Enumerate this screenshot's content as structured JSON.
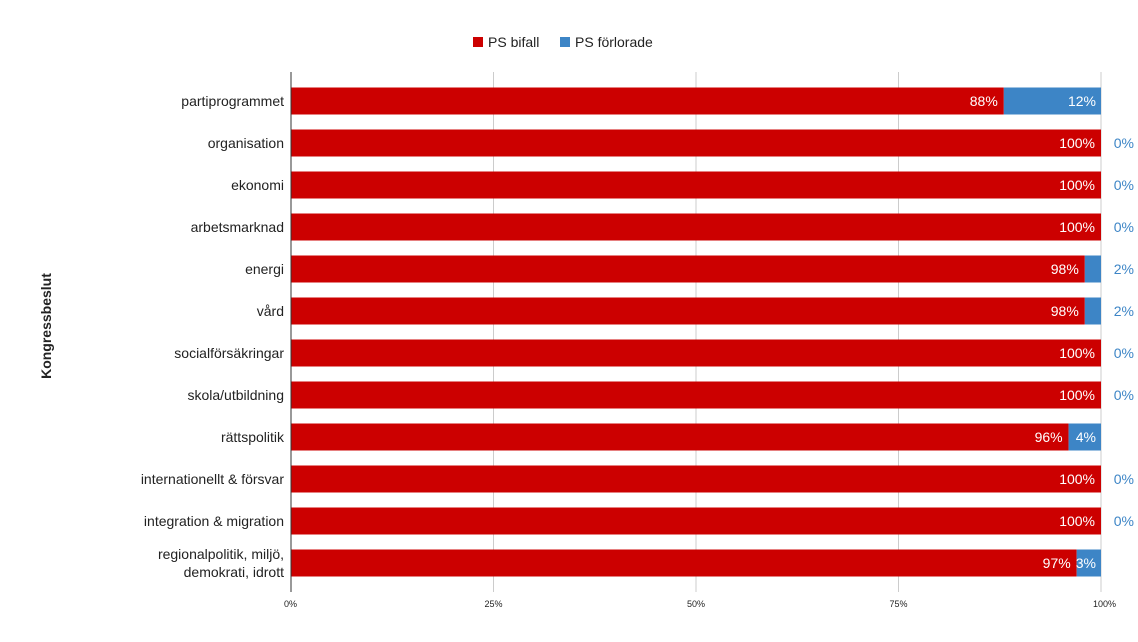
{
  "chart_data": {
    "type": "bar",
    "orientation": "horizontal",
    "stacked": true,
    "percent_stacked": true,
    "ylabel": "Kongressbeslut",
    "xlabel": "",
    "xlim": [
      0,
      100
    ],
    "x_ticks": [
      "0%",
      "25%",
      "50%",
      "75%",
      "100%"
    ],
    "grid": true,
    "legend_position": "top",
    "categories": [
      "partiprogrammet",
      "organisation",
      "ekonomi",
      "arbetsmarknad",
      "energi",
      "vård",
      "socialförsäkringar",
      "skola/utbildning",
      "rättspolitik",
      "internationellt & försvar",
      "integration & migration",
      "regionalpolitik, miljö, demokrati, idrott"
    ],
    "category_lines": [
      [
        "partiprogrammet"
      ],
      [
        "organisation"
      ],
      [
        "ekonomi"
      ],
      [
        "arbetsmarknad"
      ],
      [
        "energi"
      ],
      [
        "vård"
      ],
      [
        "socialförsäkringar"
      ],
      [
        "skola/utbildning"
      ],
      [
        "rättspolitik"
      ],
      [
        "internationellt & försvar"
      ],
      [
        "integration & migration"
      ],
      [
        "regionalpolitik, miljö,",
        "demokrati, idrott"
      ]
    ],
    "series": [
      {
        "name": "PS bifall",
        "color": "#cc0000",
        "values": [
          88,
          100,
          100,
          100,
          98,
          98,
          100,
          100,
          96,
          100,
          100,
          97
        ],
        "labels": [
          "88%",
          "100%",
          "100%",
          "100%",
          "98%",
          "98%",
          "100%",
          "100%",
          "96%",
          "100%",
          "100%",
          "97%"
        ]
      },
      {
        "name": "PS förlorade",
        "color": "#3d85c6",
        "values": [
          12,
          0,
          0,
          0,
          2,
          2,
          0,
          0,
          4,
          0,
          0,
          3
        ],
        "labels": [
          "12%",
          "0%",
          "0%",
          "0%",
          "2%",
          "2%",
          "0%",
          "0%",
          "4%",
          "0%",
          "0%",
          "3%"
        ]
      }
    ],
    "colors": {
      "bar_label_inside": "#ffffff",
      "bar_label_outside": "#3d85c6",
      "gridline": "#cccccc",
      "axis": "#333333",
      "text": "#222222"
    }
  }
}
